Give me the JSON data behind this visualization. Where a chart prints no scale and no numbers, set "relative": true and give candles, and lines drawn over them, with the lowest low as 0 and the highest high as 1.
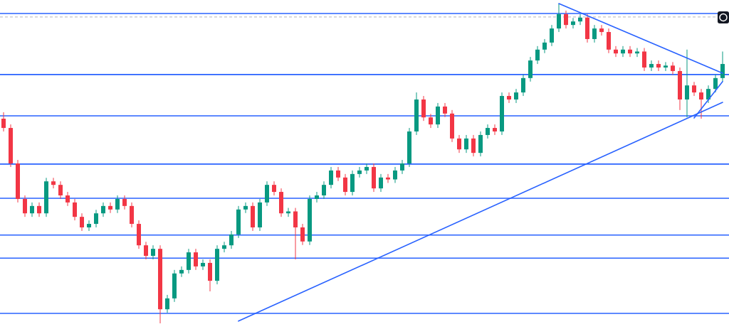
{
  "chart_data": {
    "type": "candlestick",
    "relative": true,
    "categories": [
      null,
      null,
      null,
      null,
      null,
      null,
      null,
      null,
      null,
      null,
      null,
      null,
      null,
      null,
      null,
      null,
      null,
      null,
      null,
      null,
      null,
      null,
      null,
      null,
      null,
      null,
      null,
      null,
      null,
      null,
      null,
      null,
      null,
      null,
      null,
      null,
      null,
      null,
      null,
      null,
      null,
      null,
      null,
      null,
      null,
      null,
      null,
      null,
      null,
      null,
      null,
      null,
      null,
      null,
      null,
      null,
      null,
      null,
      null,
      null,
      null,
      null,
      null,
      null,
      null,
      null,
      null,
      null,
      null,
      null,
      null,
      null,
      null,
      null,
      null,
      null,
      null,
      null,
      null,
      null,
      null,
      null,
      null,
      null,
      null,
      null,
      null,
      null,
      null,
      null,
      null,
      null,
      null,
      null,
      null,
      null,
      null,
      null,
      null,
      null,
      null,
      null
    ],
    "ohlc": [
      [
        0.64,
        0.66,
        0.6,
        0.611
      ],
      [
        0.611,
        0.622,
        0.489,
        0.5
      ],
      [
        0.5,
        0.511,
        0.378,
        0.389
      ],
      [
        0.389,
        0.4,
        0.333,
        0.344
      ],
      [
        0.344,
        0.378,
        0.333,
        0.367
      ],
      [
        0.367,
        0.378,
        0.333,
        0.344
      ],
      [
        0.344,
        0.455,
        0.333,
        0.444
      ],
      [
        0.444,
        0.455,
        0.422,
        0.433
      ],
      [
        0.433,
        0.444,
        0.389,
        0.4
      ],
      [
        0.4,
        0.411,
        0.367,
        0.378
      ],
      [
        0.378,
        0.389,
        0.322,
        0.333
      ],
      [
        0.333,
        0.344,
        0.289,
        0.3
      ],
      [
        0.3,
        0.322,
        0.289,
        0.311
      ],
      [
        0.311,
        0.355,
        0.3,
        0.344
      ],
      [
        0.344,
        0.378,
        0.333,
        0.367
      ],
      [
        0.367,
        0.378,
        0.345,
        0.356
      ],
      [
        0.356,
        0.4,
        0.345,
        0.389
      ],
      [
        0.389,
        0.4,
        0.356,
        0.367
      ],
      [
        0.367,
        0.378,
        0.3,
        0.311
      ],
      [
        0.311,
        0.322,
        0.233,
        0.244
      ],
      [
        0.244,
        0.255,
        0.2,
        0.211
      ],
      [
        0.211,
        0.244,
        0.2,
        0.233
      ],
      [
        0.233,
        0.244,
        0,
        0.044
      ],
      [
        0.044,
        0.089,
        0.033,
        0.078
      ],
      [
        0.078,
        0.167,
        0.067,
        0.156
      ],
      [
        0.156,
        0.178,
        0.145,
        0.167
      ],
      [
        0.167,
        0.233,
        0.156,
        0.222
      ],
      [
        0.222,
        0.233,
        0.167,
        0.178
      ],
      [
        0.178,
        0.2,
        0.167,
        0.189
      ],
      [
        0.189,
        0.2,
        0.1,
        0.133
      ],
      [
        0.133,
        0.244,
        0.122,
        0.233
      ],
      [
        0.233,
        0.255,
        0.222,
        0.244
      ],
      [
        0.244,
        0.289,
        0.233,
        0.278
      ],
      [
        0.278,
        0.367,
        0.267,
        0.356
      ],
      [
        0.356,
        0.378,
        0.345,
        0.367
      ],
      [
        0.367,
        0.378,
        0.289,
        0.3
      ],
      [
        0.3,
        0.389,
        0.289,
        0.378
      ],
      [
        0.378,
        0.444,
        0.367,
        0.433
      ],
      [
        0.433,
        0.444,
        0.4,
        0.411
      ],
      [
        0.411,
        0.422,
        0.333,
        0.344
      ],
      [
        0.344,
        0.361,
        0.333,
        0.35
      ],
      [
        0.35,
        0.361,
        0.2,
        0.3
      ],
      [
        0.3,
        0.311,
        0.245,
        0.256
      ],
      [
        0.256,
        0.4,
        0.245,
        0.389
      ],
      [
        0.389,
        0.411,
        0.378,
        0.4
      ],
      [
        0.4,
        0.444,
        0.389,
        0.433
      ],
      [
        0.433,
        0.489,
        0.422,
        0.478
      ],
      [
        0.478,
        0.489,
        0.445,
        0.456
      ],
      [
        0.456,
        0.467,
        0.4,
        0.411
      ],
      [
        0.411,
        0.478,
        0.4,
        0.467
      ],
      [
        0.467,
        0.489,
        0.456,
        0.478
      ],
      [
        0.478,
        0.5,
        0.467,
        0.489
      ],
      [
        0.489,
        0.5,
        0.411,
        0.422
      ],
      [
        0.422,
        0.467,
        0.411,
        0.456
      ],
      [
        0.456,
        0.467,
        0.439,
        0.45
      ],
      [
        0.45,
        0.489,
        0.439,
        0.478
      ],
      [
        0.478,
        0.511,
        0.467,
        0.5
      ],
      [
        0.5,
        0.611,
        0.489,
        0.6
      ],
      [
        0.6,
        0.722,
        0.589,
        0.7
      ],
      [
        0.7,
        0.711,
        0.633,
        0.644
      ],
      [
        0.644,
        0.655,
        0.611,
        0.622
      ],
      [
        0.622,
        0.689,
        0.611,
        0.678
      ],
      [
        0.678,
        0.689,
        0.645,
        0.656
      ],
      [
        0.656,
        0.667,
        0.567,
        0.578
      ],
      [
        0.578,
        0.589,
        0.533,
        0.544
      ],
      [
        0.544,
        0.589,
        0.533,
        0.578
      ],
      [
        0.578,
        0.589,
        0.522,
        0.533
      ],
      [
        0.533,
        0.6,
        0.522,
        0.589
      ],
      [
        0.589,
        0.622,
        0.578,
        0.611
      ],
      [
        0.611,
        0.622,
        0.589,
        0.6
      ],
      [
        0.6,
        0.722,
        0.589,
        0.711
      ],
      [
        0.711,
        0.722,
        0.689,
        0.7
      ],
      [
        0.7,
        0.733,
        0.689,
        0.722
      ],
      [
        0.722,
        0.778,
        0.711,
        0.767
      ],
      [
        0.767,
        0.833,
        0.756,
        0.822
      ],
      [
        0.822,
        0.867,
        0.811,
        0.856
      ],
      [
        0.856,
        0.889,
        0.845,
        0.878
      ],
      [
        0.878,
        0.933,
        0.867,
        0.922
      ],
      [
        0.922,
        1,
        0.911,
        0.967
      ],
      [
        0.967,
        0.978,
        0.922,
        0.933
      ],
      [
        0.933,
        0.955,
        0.922,
        0.944
      ],
      [
        0.944,
        0.967,
        0.933,
        0.956
      ],
      [
        0.956,
        0.967,
        0.878,
        0.889
      ],
      [
        0.889,
        0.933,
        0.878,
        0.922
      ],
      [
        0.922,
        0.933,
        0.9,
        0.911
      ],
      [
        0.911,
        0.922,
        0.845,
        0.856
      ],
      [
        0.856,
        0.867,
        0.833,
        0.844
      ],
      [
        0.844,
        0.867,
        0.833,
        0.856
      ],
      [
        0.856,
        0.867,
        0.833,
        0.844
      ],
      [
        0.844,
        0.861,
        0.833,
        0.85
      ],
      [
        0.85,
        0.861,
        0.789,
        0.8
      ],
      [
        0.8,
        0.822,
        0.789,
        0.811
      ],
      [
        0.811,
        0.822,
        0.789,
        0.8
      ],
      [
        0.8,
        0.817,
        0.789,
        0.806
      ],
      [
        0.806,
        0.817,
        0.778,
        0.789
      ],
      [
        0.789,
        0.8,
        0.667,
        0.7
      ],
      [
        0.7,
        0.856,
        0.644,
        0.744
      ],
      [
        0.744,
        0.755,
        0.711,
        0.722
      ],
      [
        0.722,
        0.733,
        0.64,
        0.7
      ],
      [
        0.7,
        0.744,
        0.689,
        0.733
      ],
      [
        0.733,
        0.778,
        0.722,
        0.767
      ],
      [
        0.767,
        0.85,
        0.756,
        0.811
      ]
    ],
    "series": [
      {
        "type": "line",
        "color": "#2962ff",
        "values": [
          null,
          null,
          null,
          null,
          null,
          null,
          null,
          null,
          null,
          null,
          null,
          null,
          null,
          null,
          null,
          null,
          null,
          null,
          null,
          null,
          null,
          null,
          null,
          null,
          null,
          null,
          null,
          null,
          null,
          null,
          null,
          null,
          null,
          0.007,
          null,
          null,
          null,
          null,
          null,
          null,
          null,
          null,
          null,
          null,
          null,
          null,
          null,
          null,
          null,
          null,
          null,
          null,
          null,
          null,
          null,
          null,
          null,
          null,
          null,
          null,
          null,
          null,
          null,
          null,
          null,
          null,
          null,
          null,
          null,
          null,
          null,
          null,
          null,
          null,
          null,
          null,
          null,
          null,
          null,
          null,
          null,
          null,
          null,
          null,
          null,
          null,
          null,
          null,
          null,
          null,
          null,
          null,
          null,
          null,
          null,
          null,
          null,
          null,
          null,
          null,
          null,
          0.691
        ]
      },
      {
        "type": "line",
        "color": "#2962ff",
        "values": [
          null,
          null,
          null,
          null,
          null,
          null,
          null,
          null,
          null,
          null,
          null,
          null,
          null,
          null,
          null,
          null,
          null,
          null,
          null,
          null,
          null,
          null,
          null,
          null,
          null,
          null,
          null,
          null,
          null,
          null,
          null,
          null,
          null,
          null,
          null,
          null,
          null,
          null,
          null,
          null,
          null,
          null,
          null,
          null,
          null,
          null,
          null,
          null,
          null,
          null,
          null,
          null,
          null,
          null,
          null,
          null,
          null,
          null,
          null,
          null,
          null,
          null,
          null,
          null,
          null,
          null,
          null,
          null,
          null,
          null,
          null,
          null,
          null,
          null,
          null,
          null,
          null,
          null,
          1,
          null,
          null,
          null,
          null,
          null,
          null,
          null,
          null,
          null,
          null,
          null,
          null,
          null,
          null,
          null,
          null,
          null,
          null,
          null,
          null,
          null,
          null,
          0.782
        ]
      },
      {
        "type": "line",
        "color": "#2962ff",
        "values": [
          null,
          null,
          null,
          null,
          null,
          null,
          null,
          null,
          null,
          null,
          null,
          null,
          null,
          null,
          null,
          null,
          null,
          null,
          null,
          null,
          null,
          null,
          null,
          null,
          null,
          null,
          null,
          null,
          null,
          null,
          null,
          null,
          null,
          null,
          null,
          null,
          null,
          null,
          null,
          null,
          null,
          null,
          null,
          null,
          null,
          null,
          null,
          null,
          null,
          null,
          null,
          null,
          null,
          null,
          null,
          null,
          null,
          null,
          null,
          null,
          null,
          null,
          null,
          null,
          null,
          null,
          null,
          null,
          null,
          null,
          null,
          null,
          null,
          null,
          null,
          null,
          null,
          null,
          null,
          null,
          null,
          null,
          null,
          null,
          null,
          null,
          null,
          null,
          null,
          null,
          null,
          null,
          null,
          null,
          null,
          null,
          null,
          0.642,
          null,
          null,
          null,
          0.756
        ]
      }
    ],
    "ref_lines": [
      {
        "axis": "y",
        "value": 0.969,
        "color": "#2962ff"
      },
      {
        "axis": "y",
        "value": 0.958,
        "color": "#b2b5be",
        "line_style": "dashed"
      },
      {
        "axis": "y",
        "value": 0.778,
        "color": "#2962ff"
      },
      {
        "axis": "y",
        "value": 0.649,
        "color": "#2962ff"
      },
      {
        "axis": "y",
        "value": 0.498,
        "color": "#2962ff"
      },
      {
        "axis": "y",
        "value": 0.391,
        "color": "#2962ff"
      },
      {
        "axis": "y",
        "value": 0.276,
        "color": "#2962ff"
      },
      {
        "axis": "y",
        "value": 0.204,
        "color": "#2962ff"
      },
      {
        "axis": "y",
        "value": 0.031,
        "color": "#2962ff"
      }
    ]
  }
}
